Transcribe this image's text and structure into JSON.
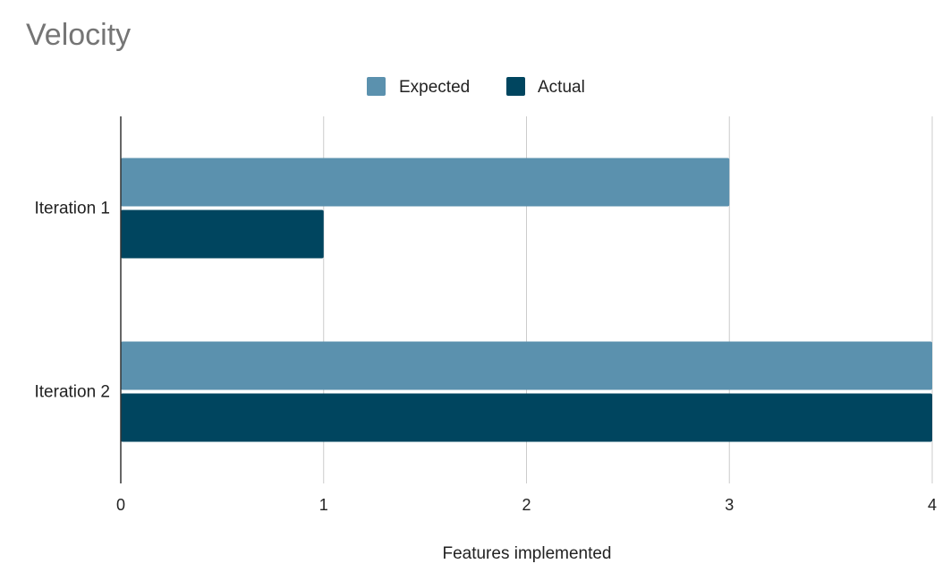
{
  "chart_data": {
    "type": "bar",
    "orientation": "horizontal",
    "title": "Velocity",
    "xlabel": "Features implemented",
    "ylabel": "",
    "categories": [
      "Iteration 1",
      "Iteration 2"
    ],
    "series": [
      {
        "name": "Expected",
        "values": [
          3,
          4
        ],
        "color": "#5b91ae"
      },
      {
        "name": "Actual",
        "values": [
          1,
          4
        ],
        "color": "#00455f"
      }
    ],
    "xlim": [
      0,
      4
    ],
    "xticks": [
      "0",
      "1",
      "2",
      "3",
      "4"
    ],
    "grid": true,
    "legend_position": "top-center"
  }
}
